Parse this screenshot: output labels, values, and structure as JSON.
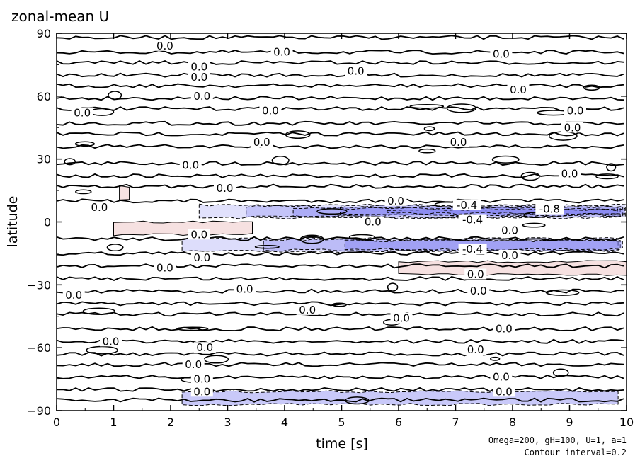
{
  "chart_data": {
    "type": "contour",
    "title": "zonal-mean U",
    "xlabel": "time [s]",
    "ylabel": "latitude",
    "xlim": [
      0,
      10
    ],
    "ylim": [
      -90,
      90
    ],
    "x_ticks": [
      0,
      1,
      2,
      3,
      4,
      5,
      6,
      7,
      8,
      9,
      10
    ],
    "y_ticks": [
      90,
      60,
      30,
      0,
      -30,
      -60,
      -90
    ],
    "y_tick_labels": [
      "90",
      "60",
      "30",
      "0",
      "−30",
      "−60",
      "−90"
    ],
    "note_line1": "Omega=200, gH=100, U=1, a=1",
    "note_line2": "Contour interval=0.2",
    "contour_interval": 0.2,
    "colors": {
      "negative_fill": "#7878f0",
      "positive_fill": "#e8b4b4",
      "contour": "#000000"
    },
    "zero_lines_lat": [
      88,
      81,
      76,
      70,
      65,
      59,
      54,
      47,
      42,
      36,
      28,
      22,
      17,
      10,
      -8,
      -15,
      -21,
      -27,
      -33,
      -39,
      -44,
      -51,
      -57,
      -63,
      -68,
      -74,
      -80,
      -85
    ],
    "negative_bands": [
      {
        "lat": 5,
        "t0": 2.5,
        "t1": 10,
        "min": -0.9
      },
      {
        "lat": -11,
        "t0": 2.2,
        "t1": 10,
        "min": -0.5
      },
      {
        "lat": -84,
        "t0": 2.2,
        "t1": 10,
        "min": -0.2
      }
    ],
    "positive_bands": [
      {
        "lat": -3,
        "t0": 1.0,
        "t1": 3.6,
        "max": 0.2
      },
      {
        "lat": -22,
        "t0": 6.0,
        "t1": 10,
        "max": 0.2
      },
      {
        "lat": 14,
        "t0": 1.1,
        "t1": 1.4,
        "max": 0.2
      }
    ],
    "contour_labels": [
      {
        "text": "0.0",
        "t": 1.9,
        "lat": 84
      },
      {
        "text": "0.0",
        "t": 3.95,
        "lat": 81
      },
      {
        "text": "0.0",
        "t": 7.8,
        "lat": 80
      },
      {
        "text": "0.0",
        "t": 2.5,
        "lat": 74
      },
      {
        "text": "0.0",
        "t": 5.25,
        "lat": 72
      },
      {
        "text": "0.0",
        "t": 2.5,
        "lat": 69
      },
      {
        "text": "0.0",
        "t": 8.1,
        "lat": 63
      },
      {
        "text": "0.0",
        "t": 2.55,
        "lat": 60
      },
      {
        "text": "0.0",
        "t": 0.45,
        "lat": 52
      },
      {
        "text": "0.0",
        "t": 3.75,
        "lat": 53
      },
      {
        "text": "0.0",
        "t": 9.1,
        "lat": 53
      },
      {
        "text": "0.0",
        "t": 9.05,
        "lat": 45
      },
      {
        "text": "0.0",
        "t": 3.6,
        "lat": 38
      },
      {
        "text": "0.0",
        "t": 7.05,
        "lat": 38
      },
      {
        "text": "0.0",
        "t": 2.35,
        "lat": 27
      },
      {
        "text": "0.0",
        "t": 9.0,
        "lat": 23
      },
      {
        "text": "0.0",
        "t": 2.95,
        "lat": 16
      },
      {
        "text": "0.0",
        "t": 5.95,
        "lat": 10
      },
      {
        "text": "0.0",
        "t": 0.75,
        "lat": 7
      },
      {
        "text": "-0.4",
        "t": 7.2,
        "lat": 8
      },
      {
        "text": "-0.8",
        "t": 8.65,
        "lat": 6
      },
      {
        "text": "-0.4",
        "t": 7.3,
        "lat": 1
      },
      {
        "text": "0.0",
        "t": 5.55,
        "lat": 0
      },
      {
        "text": "0.0",
        "t": 7.95,
        "lat": -4
      },
      {
        "text": "0.0",
        "t": 2.5,
        "lat": -6
      },
      {
        "text": "-0.4",
        "t": 7.3,
        "lat": -13
      },
      {
        "text": "0.0",
        "t": 7.95,
        "lat": -16
      },
      {
        "text": "0.0",
        "t": 2.55,
        "lat": -17
      },
      {
        "text": "0.0",
        "t": 1.9,
        "lat": -22
      },
      {
        "text": "0.0",
        "t": 7.35,
        "lat": -25
      },
      {
        "text": "0.0",
        "t": 3.3,
        "lat": -32
      },
      {
        "text": "0.0",
        "t": 7.4,
        "lat": -33
      },
      {
        "text": "0.0",
        "t": 0.3,
        "lat": -35
      },
      {
        "text": "0.0",
        "t": 4.4,
        "lat": -42
      },
      {
        "text": "0.0",
        "t": 6.05,
        "lat": -46
      },
      {
        "text": "0.0",
        "t": 7.85,
        "lat": -51
      },
      {
        "text": "0.0",
        "t": 0.95,
        "lat": -57
      },
      {
        "text": "0.0",
        "t": 2.6,
        "lat": -60
      },
      {
        "text": "0.0",
        "t": 7.35,
        "lat": -61
      },
      {
        "text": "0.0",
        "t": 2.4,
        "lat": -68
      },
      {
        "text": "0.0",
        "t": 7.8,
        "lat": -74
      },
      {
        "text": "0.0",
        "t": 2.55,
        "lat": -75
      },
      {
        "text": "0.0",
        "t": 2.55,
        "lat": -81
      },
      {
        "text": "0.0",
        "t": 7.85,
        "lat": -81
      }
    ]
  }
}
